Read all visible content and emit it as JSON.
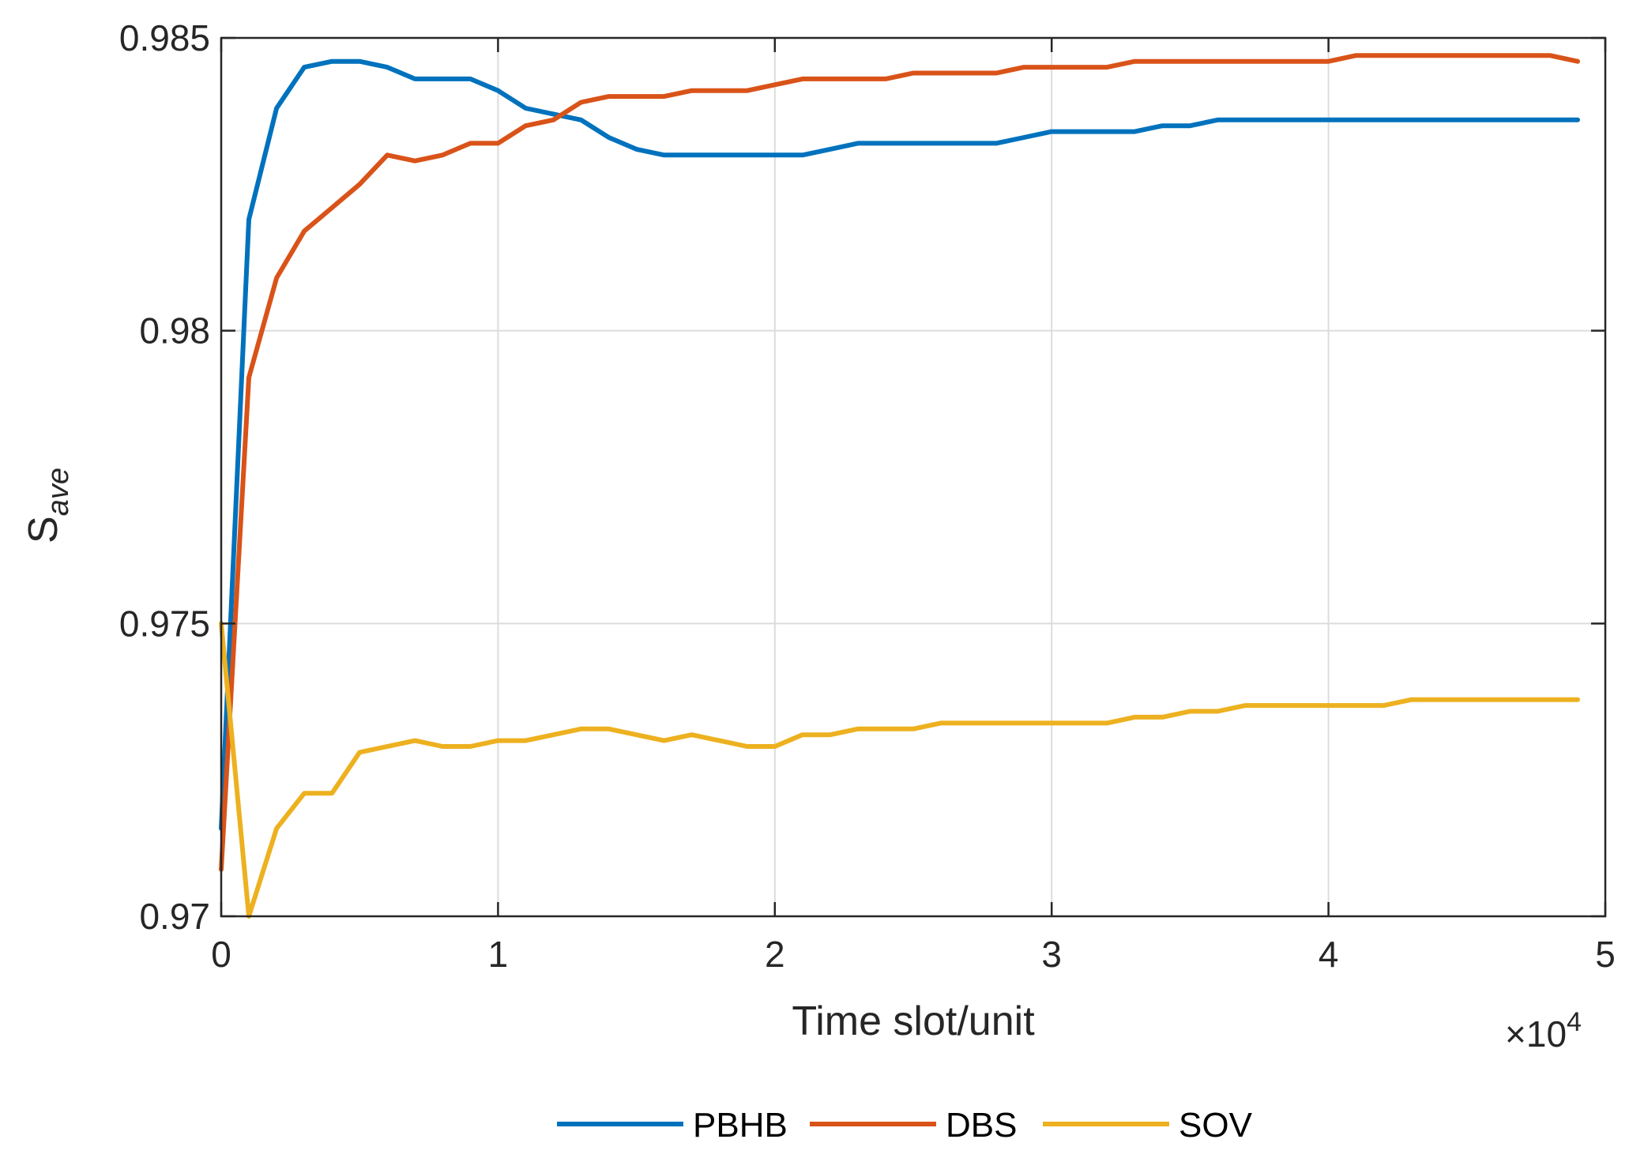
{
  "chart_data": {
    "type": "line",
    "xlabel": "Time slot/unit",
    "ylabel_main": "S",
    "ylabel_sub": "ave",
    "x_multiplier_label": "×10",
    "x_multiplier_exp": "4",
    "xlim": [
      0,
      5
    ],
    "ylim": [
      0.97,
      0.985
    ],
    "x_ticks": [
      0,
      1,
      2,
      3,
      4,
      5
    ],
    "x_tick_labels": [
      "0",
      "1",
      "2",
      "3",
      "4",
      "5"
    ],
    "y_ticks": [
      0.97,
      0.975,
      0.98,
      0.985
    ],
    "y_tick_labels": [
      "0.97",
      "0.975",
      "0.98",
      "0.985"
    ],
    "grid": true,
    "legend_position": "bottom",
    "series": [
      {
        "name": "PBHB",
        "color": "#0072BD",
        "x": [
          0,
          0.1,
          0.2,
          0.3,
          0.4,
          0.5,
          0.6,
          0.7,
          0.8,
          0.9,
          1.0,
          1.1,
          1.2,
          1.3,
          1.4,
          1.5,
          1.6,
          1.7,
          1.8,
          1.9,
          2.0,
          2.1,
          2.2,
          2.3,
          2.4,
          2.5,
          2.6,
          2.7,
          2.8,
          2.9,
          3.0,
          3.1,
          3.2,
          3.3,
          3.4,
          3.5,
          3.6,
          3.7,
          3.8,
          3.9,
          4.0,
          4.1,
          4.2,
          4.3,
          4.4,
          4.5,
          4.6,
          4.7,
          4.8,
          4.9
        ],
        "values": [
          0.9715,
          0.9819,
          0.9838,
          0.9845,
          0.9846,
          0.9846,
          0.9845,
          0.9843,
          0.9843,
          0.9843,
          0.9841,
          0.9838,
          0.9837,
          0.9836,
          0.9833,
          0.9831,
          0.983,
          0.983,
          0.983,
          0.983,
          0.983,
          0.983,
          0.9831,
          0.9832,
          0.9832,
          0.9832,
          0.9832,
          0.9832,
          0.9832,
          0.9833,
          0.9834,
          0.9834,
          0.9834,
          0.9834,
          0.9835,
          0.9835,
          0.9836,
          0.9836,
          0.9836,
          0.9836,
          0.9836,
          0.9836,
          0.9836,
          0.9836,
          0.9836,
          0.9836,
          0.9836,
          0.9836,
          0.9836,
          0.9836
        ]
      },
      {
        "name": "DBS",
        "color": "#D95319",
        "x": [
          0,
          0.1,
          0.2,
          0.3,
          0.4,
          0.5,
          0.6,
          0.7,
          0.8,
          0.9,
          1.0,
          1.1,
          1.2,
          1.3,
          1.4,
          1.5,
          1.6,
          1.7,
          1.8,
          1.9,
          2.0,
          2.1,
          2.2,
          2.3,
          2.4,
          2.5,
          2.6,
          2.7,
          2.8,
          2.9,
          3.0,
          3.1,
          3.2,
          3.3,
          3.4,
          3.5,
          3.6,
          3.7,
          3.8,
          3.9,
          4.0,
          4.1,
          4.2,
          4.3,
          4.4,
          4.5,
          4.6,
          4.7,
          4.8,
          4.9
        ],
        "values": [
          0.9708,
          0.9792,
          0.9809,
          0.9817,
          0.9821,
          0.9825,
          0.983,
          0.9829,
          0.983,
          0.9832,
          0.9832,
          0.9835,
          0.9836,
          0.9839,
          0.984,
          0.984,
          0.984,
          0.9841,
          0.9841,
          0.9841,
          0.9842,
          0.9843,
          0.9843,
          0.9843,
          0.9843,
          0.9844,
          0.9844,
          0.9844,
          0.9844,
          0.9845,
          0.9845,
          0.9845,
          0.9845,
          0.9846,
          0.9846,
          0.9846,
          0.9846,
          0.9846,
          0.9846,
          0.9846,
          0.9846,
          0.9847,
          0.9847,
          0.9847,
          0.9847,
          0.9847,
          0.9847,
          0.9847,
          0.9847,
          0.9846
        ]
      },
      {
        "name": "SOV",
        "color": "#EDB120",
        "x": [
          0,
          0.1,
          0.2,
          0.3,
          0.4,
          0.5,
          0.6,
          0.7,
          0.8,
          0.9,
          1.0,
          1.1,
          1.2,
          1.3,
          1.4,
          1.5,
          1.6,
          1.7,
          1.8,
          1.9,
          2.0,
          2.1,
          2.2,
          2.3,
          2.4,
          2.5,
          2.6,
          2.7,
          2.8,
          2.9,
          3.0,
          3.1,
          3.2,
          3.3,
          3.4,
          3.5,
          3.6,
          3.7,
          3.8,
          3.9,
          4.0,
          4.1,
          4.2,
          4.3,
          4.4,
          4.5,
          4.6,
          4.7,
          4.8,
          4.9
        ],
        "values": [
          0.975,
          0.97,
          0.9715,
          0.9721,
          0.9721,
          0.9728,
          0.9729,
          0.973,
          0.9729,
          0.9729,
          0.973,
          0.973,
          0.9731,
          0.9732,
          0.9732,
          0.9731,
          0.973,
          0.9731,
          0.973,
          0.9729,
          0.9729,
          0.9731,
          0.9731,
          0.9732,
          0.9732,
          0.9732,
          0.9733,
          0.9733,
          0.9733,
          0.9733,
          0.9733,
          0.9733,
          0.9733,
          0.9734,
          0.9734,
          0.9735,
          0.9735,
          0.9736,
          0.9736,
          0.9736,
          0.9736,
          0.9736,
          0.9736,
          0.9737,
          0.9737,
          0.9737,
          0.9737,
          0.9737,
          0.9737,
          0.9737
        ]
      }
    ]
  }
}
